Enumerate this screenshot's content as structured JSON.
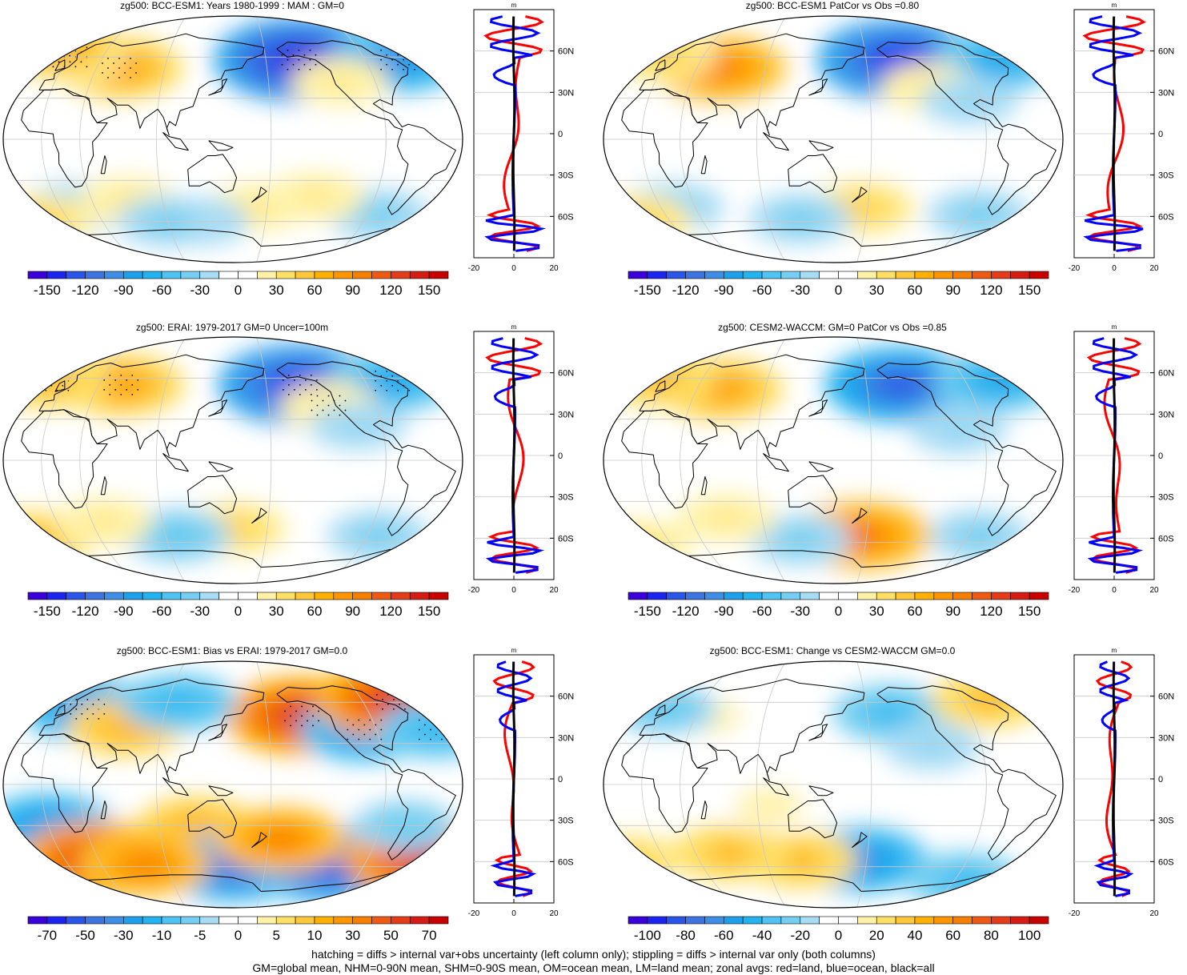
{
  "colors": {
    "land_line": "#ff0000",
    "ocean_line": "#0000ff",
    "all_line": "#000000",
    "grid": "#c8c8c8",
    "stipple": "#000000"
  },
  "chart_data": [
    {
      "type": "map-contour",
      "title": "zg500: BCC-ESM1: Years 1980-1999 : MAM : GM=0",
      "colorbar": {
        "labels": [
          "-150",
          "-120",
          "-90",
          "-60",
          "-30",
          "0",
          "30",
          "60",
          "90",
          "120",
          "150"
        ],
        "n_colors": 22
      },
      "zonal": {
        "xlabel": "m",
        "xticks": [
          "-20",
          "0",
          "20"
        ],
        "yticks": [
          "60N",
          "30N",
          "0",
          "30S",
          "60S"
        ]
      },
      "features": [
        {
          "lon": -150,
          "lat": 58,
          "v": -150
        },
        {
          "lon": -60,
          "lat": 58,
          "v": -90
        },
        {
          "lon": 50,
          "lat": 52,
          "v": 80
        },
        {
          "lon": 0,
          "lat": 60,
          "v": 50
        },
        {
          "lon": -20,
          "lat": 68,
          "v": 70
        },
        {
          "lon": -120,
          "lat": 42,
          "v": 30
        },
        {
          "lon": -80,
          "lat": -55,
          "v": -40
        },
        {
          "lon": 10,
          "lat": -50,
          "v": -40
        },
        {
          "lon": -30,
          "lat": -60,
          "v": 50
        },
        {
          "lon": 170,
          "lat": -50,
          "v": 30
        },
        {
          "lon": 120,
          "lat": -60,
          "v": -30
        },
        {
          "lon": 60,
          "lat": -45,
          "v": 30
        },
        {
          "lon": -140,
          "lat": -42,
          "v": 30
        },
        {
          "lon": 90,
          "lat": -60,
          "v": -40
        }
      ]
    },
    {
      "type": "map-contour",
      "title": "zg500: BCC-ESM1 PatCor vs Obs =0.80",
      "colorbar": {
        "labels": [
          "-150",
          "-120",
          "-90",
          "-60",
          "-30",
          "0",
          "30",
          "60",
          "90",
          "120",
          "150"
        ],
        "n_colors": 22
      },
      "zonal": {
        "xlabel": "m",
        "xticks": [
          "-20",
          "0",
          "20"
        ],
        "yticks": [
          "60N",
          "30N",
          "0",
          "30S",
          "60S"
        ]
      },
      "features": [
        {
          "lon": -150,
          "lat": 58,
          "v": -140
        },
        {
          "lon": -60,
          "lat": 58,
          "v": -80
        },
        {
          "lon": 50,
          "lat": 52,
          "v": 90
        },
        {
          "lon": -10,
          "lat": 62,
          "v": 50
        },
        {
          "lon": -130,
          "lat": 38,
          "v": 30
        },
        {
          "lon": -100,
          "lat": 28,
          "v": -30
        },
        {
          "lon": -80,
          "lat": -55,
          "v": -40
        },
        {
          "lon": 10,
          "lat": -50,
          "v": -40
        },
        {
          "lon": -30,
          "lat": -60,
          "v": 50
        },
        {
          "lon": 175,
          "lat": -50,
          "v": 50
        },
        {
          "lon": 120,
          "lat": -58,
          "v": -40
        }
      ]
    },
    {
      "type": "map-contour",
      "title": "zg500: ERAI: 1979-2017 GM=0 Uncer=100m",
      "colorbar": {
        "labels": [
          "-150",
          "-120",
          "-90",
          "-60",
          "-30",
          "0",
          "30",
          "60",
          "90",
          "120",
          "150"
        ],
        "n_colors": 22
      },
      "zonal": {
        "xlabel": "m",
        "xticks": [
          "-20",
          "0",
          "20"
        ],
        "yticks": [
          "60N",
          "30N",
          "0",
          "30S",
          "60S"
        ]
      },
      "features": [
        {
          "lon": -150,
          "lat": 55,
          "v": -140
        },
        {
          "lon": -65,
          "lat": 58,
          "v": -80
        },
        {
          "lon": 50,
          "lat": 55,
          "v": 80
        },
        {
          "lon": -15,
          "lat": 58,
          "v": 60
        },
        {
          "lon": -130,
          "lat": 40,
          "v": 30
        },
        {
          "lon": -110,
          "lat": 25,
          "v": -30
        },
        {
          "lon": -80,
          "lat": -55,
          "v": -40
        },
        {
          "lon": 150,
          "lat": -50,
          "v": 50
        },
        {
          "lon": -30,
          "lat": -58,
          "v": 60
        },
        {
          "lon": 100,
          "lat": -55,
          "v": -50
        },
        {
          "lon": 40,
          "lat": -45,
          "v": 30
        }
      ]
    },
    {
      "type": "map-contour",
      "title": "zg500: CESM2-WACCM: GM=0 PatCor vs Obs =0.85",
      "colorbar": {
        "labels": [
          "-150",
          "-120",
          "-90",
          "-60",
          "-30",
          "0",
          "30",
          "60",
          "90",
          "120",
          "150"
        ],
        "n_colors": 22
      },
      "zonal": {
        "xlabel": "m",
        "xticks": [
          "-20",
          "0",
          "20"
        ],
        "yticks": [
          "60N",
          "30N",
          "0",
          "30S",
          "60S"
        ]
      },
      "features": [
        {
          "lon": -150,
          "lat": 55,
          "v": -120
        },
        {
          "lon": -60,
          "lat": 58,
          "v": -80
        },
        {
          "lon": 50,
          "lat": 52,
          "v": 80
        },
        {
          "lon": -10,
          "lat": 60,
          "v": 60
        },
        {
          "lon": -110,
          "lat": 22,
          "v": -30
        },
        {
          "lon": -80,
          "lat": -55,
          "v": -40
        },
        {
          "lon": 175,
          "lat": -55,
          "v": 100
        },
        {
          "lon": 120,
          "lat": -58,
          "v": -40
        },
        {
          "lon": -30,
          "lat": -62,
          "v": 40
        },
        {
          "lon": 60,
          "lat": -42,
          "v": 30
        }
      ]
    },
    {
      "type": "map-contour",
      "title": "zg500: BCC-ESM1: Bias vs ERAI: 1979-2017 GM=0.0",
      "colorbar": {
        "labels": [
          "-70",
          "-50",
          "-30",
          "-10",
          "-5",
          "0",
          "5",
          "10",
          "30",
          "50",
          "70"
        ],
        "n_colors": 22
      },
      "zonal": {
        "xlabel": "m",
        "xticks": [
          "-20",
          "0",
          "20"
        ],
        "yticks": [
          "60N",
          "30N",
          "0",
          "30S",
          "60S"
        ]
      },
      "features": [
        {
          "lon": -150,
          "lat": 50,
          "v": 60
        },
        {
          "lon": -100,
          "lat": 40,
          "v": -40
        },
        {
          "lon": -60,
          "lat": 62,
          "v": 60
        },
        {
          "lon": -40,
          "lat": 40,
          "v": -30
        },
        {
          "lon": 20,
          "lat": 55,
          "v": -40
        },
        {
          "lon": 60,
          "lat": 42,
          "v": 30
        },
        {
          "lon": 100,
          "lat": 60,
          "v": -30
        },
        {
          "lon": 0,
          "lat": -30,
          "v": -40
        },
        {
          "lon": 120,
          "lat": -30,
          "v": 30
        },
        {
          "lon": 30,
          "lat": -55,
          "v": 60
        },
        {
          "lon": 150,
          "lat": -60,
          "v": -50
        },
        {
          "lon": -120,
          "lat": -58,
          "v": -60
        },
        {
          "lon": -40,
          "lat": -55,
          "v": 60
        },
        {
          "lon": -170,
          "lat": -40,
          "v": 40
        },
        {
          "lon": -70,
          "lat": -30,
          "v": -20
        },
        {
          "lon": 70,
          "lat": -58,
          "v": 40
        }
      ]
    },
    {
      "type": "map-contour",
      "title": "zg500: BCC-ESM1: Change vs CESM2-WACCM GM=0.0",
      "colorbar": {
        "labels": [
          "-100",
          "-80",
          "-60",
          "-40",
          "-20",
          "0",
          "20",
          "40",
          "60",
          "80",
          "100"
        ],
        "n_colors": 22
      },
      "zonal": {
        "xlabel": "m",
        "xticks": [
          "-20",
          "20"
        ],
        "yticks": [
          "60N",
          "30N",
          "0",
          "30S",
          "60S"
        ]
      },
      "features": [
        {
          "lon": -160,
          "lat": 52,
          "v": -40
        },
        {
          "lon": -65,
          "lat": 62,
          "v": 40
        },
        {
          "lon": 40,
          "lat": 50,
          "v": 15
        },
        {
          "lon": -130,
          "lat": 28,
          "v": -20
        },
        {
          "lon": 0,
          "lat": 55,
          "v": -30
        },
        {
          "lon": 175,
          "lat": -55,
          "v": -60
        },
        {
          "lon": -30,
          "lat": -55,
          "v": 30
        },
        {
          "lon": 120,
          "lat": -55,
          "v": 40
        },
        {
          "lon": 60,
          "lat": -50,
          "v": 40
        },
        {
          "lon": -80,
          "lat": -70,
          "v": -40
        },
        {
          "lon": 100,
          "lat": -15,
          "v": 15
        }
      ]
    }
  ],
  "footer": {
    "line1": "hatching = diffs > internal var+obs uncertainty (left column only); stippling = diffs > internal var only (both columns)",
    "line2": "GM=global mean, NHM=0-90N mean, SHM=0-90S mean, OM=ocean mean, LM=land mean; zonal avgs: red=land, blue=ocean, black=all"
  }
}
